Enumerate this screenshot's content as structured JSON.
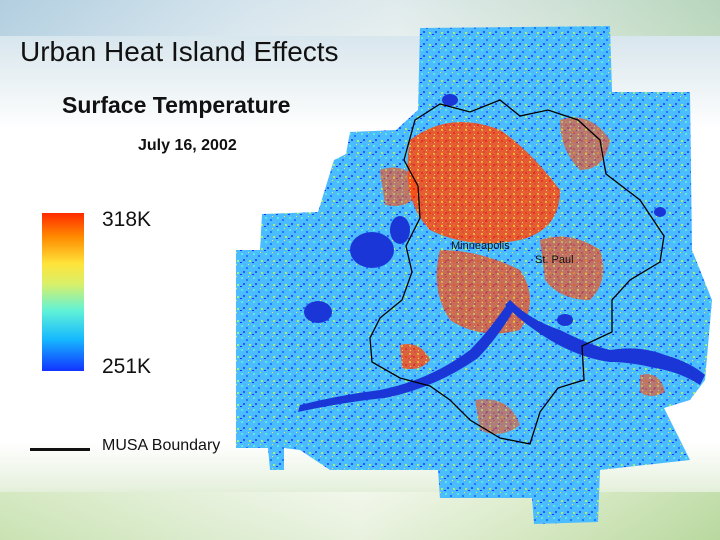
{
  "slide": {
    "title": "Urban Heat Island Effects",
    "subtitle": "Surface Temperature",
    "date": "July 16, 2002"
  },
  "legend": {
    "high_label": "318K",
    "low_label": "251K",
    "boundary_label": "MUSA Boundary",
    "colors": [
      "#ff2a00",
      "#ff8a00",
      "#ffe33a",
      "#5ff2d8",
      "#16b8ff",
      "#1233ff"
    ]
  },
  "map": {
    "city_labels": [
      "Minneapolis",
      "St. Paul"
    ],
    "water_color": "#1b36d6",
    "hot_color": "#ff2a00",
    "background_color": "#57c8ff"
  }
}
